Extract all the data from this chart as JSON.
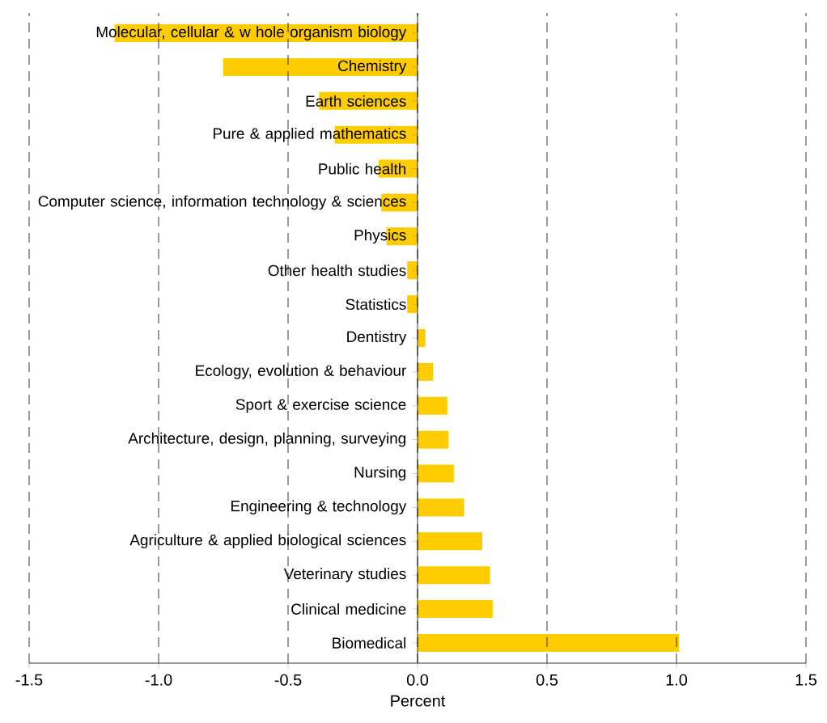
{
  "chart_data": {
    "type": "bar",
    "orientation": "horizontal",
    "categories": [
      "Molecular, cellular & w hole organism biology",
      "Chemistry",
      "Earth sciences",
      "Pure & applied mathematics",
      "Public health",
      "Computer science, information technology & sciences",
      "Physics",
      "Other health studies",
      "Statistics",
      "Dentistry",
      "Ecology, evolution & behaviour",
      "Sport & exercise science",
      "Architecture, design, planning, surveying",
      "Nursing",
      "Engineering & technology",
      "Agriculture & applied biological sciences",
      "Veterinary studies",
      "Clinical medicine",
      "Biomedical"
    ],
    "values": [
      -1.17,
      -0.75,
      -0.38,
      -0.32,
      -0.15,
      -0.14,
      -0.12,
      -0.04,
      -0.04,
      0.03,
      0.06,
      0.115,
      0.12,
      0.14,
      0.18,
      0.25,
      0.28,
      0.29,
      1.01
    ],
    "color": "#ffcc00",
    "xlabel": "Percent",
    "xlim": [
      -1.5,
      1.5
    ],
    "xticks": [
      -1.5,
      {
        "value": -1.0,
        "label": "-1.0"
      },
      -0.5,
      {
        "value": 0.0,
        "label": "0.0"
      },
      0.5,
      {
        "value": 1.0,
        "label": "1.0"
      },
      1.5
    ],
    "grid": "x"
  }
}
